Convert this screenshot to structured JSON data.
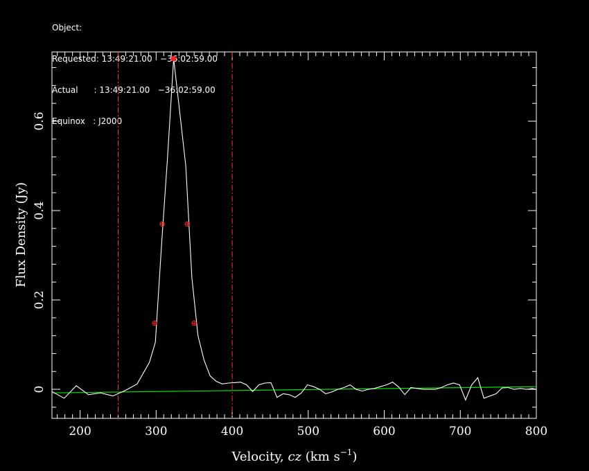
{
  "header": {
    "object": "Object:",
    "requested": "Requested: 13:49:21.00   −36:02:59.00",
    "actual": "Actual      : 13:49:21.00   −36:02:59.00",
    "equinox": "Equinox   : J2000"
  },
  "chart_data": {
    "type": "line",
    "xlabel_pre": "Velocity, ",
    "xlabel_italic": "cz",
    "xlabel_unit": " (km s",
    "xlabel_exp": "−1",
    "xlabel_close": ")",
    "ylabel": "Flux Density (Jy)",
    "xlim": [
      163,
      800
    ],
    "ylim": [
      -0.065,
      0.755
    ],
    "x_ticks": [
      200,
      300,
      400,
      500,
      600,
      700,
      800
    ],
    "x_tick_labels": [
      "200",
      "300",
      "400",
      "500",
      "600",
      "700",
      "800"
    ],
    "y_ticks": [
      0,
      0.2,
      0.4,
      0.6
    ],
    "y_tick_labels": [
      "0",
      "0.2",
      "0.4",
      "0.6"
    ],
    "colors": {
      "spectrum": "#ffffff",
      "baseline": "#00e000",
      "markers": "#ff2020",
      "window": "#ff3030"
    },
    "series": [
      {
        "x": [
          163,
          179,
          195,
          211,
          227,
          243,
          259,
          275,
          291,
          299,
          307,
          315,
          323,
          331,
          339,
          347,
          355,
          363,
          371,
          379,
          387,
          395,
          403,
          411,
          419,
          427,
          435,
          443,
          451,
          459,
          467,
          475,
          483,
          491,
          499,
          507,
          515,
          523,
          531,
          539,
          547,
          555,
          563,
          571,
          579,
          587,
          595,
          603,
          611,
          619,
          627,
          635,
          643,
          651,
          659,
          667,
          675,
          683,
          691,
          699,
          707,
          715,
          723,
          731,
          739,
          747,
          755,
          763,
          771,
          779,
          787,
          795,
          800
        ],
        "y": [
          -0.005,
          -0.02,
          0.008,
          -0.012,
          -0.008,
          -0.015,
          -0.003,
          0.012,
          0.06,
          0.105,
          0.32,
          0.52,
          0.74,
          0.62,
          0.5,
          0.25,
          0.12,
          0.065,
          0.03,
          0.018,
          0.012,
          0.014,
          0.015,
          0.016,
          0.01,
          -0.005,
          0.01,
          0.014,
          0.015,
          -0.018,
          -0.01,
          -0.012,
          -0.018,
          -0.008,
          0.01,
          0.006,
          0.0,
          -0.01,
          -0.006,
          0.0,
          0.004,
          0.01,
          0.0,
          -0.004,
          0.0,
          0.002,
          0.006,
          0.01,
          0.016,
          0.005,
          -0.012,
          0.004,
          0.002,
          0.0,
          0.0,
          0.0,
          0.004,
          0.01,
          0.014,
          0.01,
          -0.024,
          0.01,
          0.026,
          -0.02,
          -0.015,
          -0.01,
          0.003,
          0.004,
          0.0,
          0.002,
          0.0,
          0.002,
          0.0
        ]
      }
    ],
    "baseline": {
      "x": [
        163,
        800
      ],
      "y": [
        -0.008,
        0.006
      ]
    },
    "window_lines_x": [
      250,
      400
    ],
    "peak": {
      "x": 323,
      "y": 0.74
    },
    "width_markers": [
      {
        "x": 308,
        "y": 0.37
      },
      {
        "x": 341,
        "y": 0.37
      },
      {
        "x": 298,
        "y": 0.148
      },
      {
        "x": 350,
        "y": 0.148
      }
    ]
  }
}
